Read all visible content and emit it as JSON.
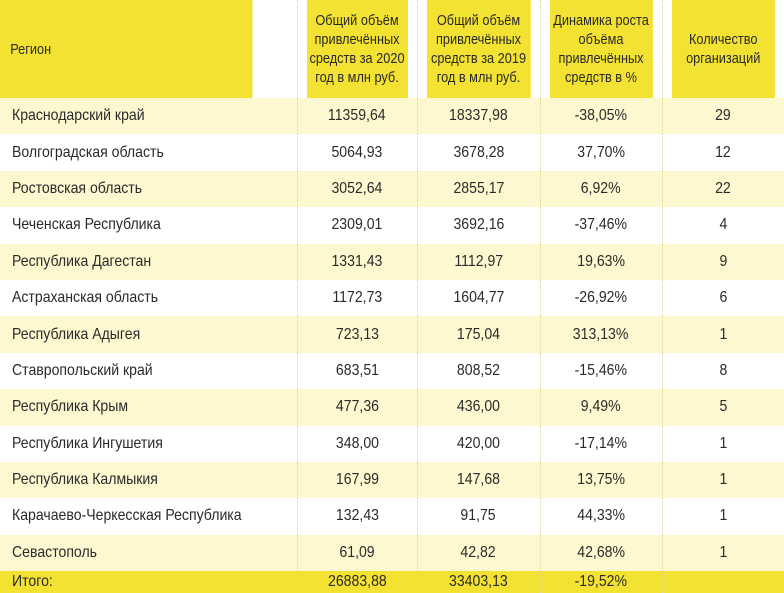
{
  "colors": {
    "header": "#f3e232",
    "row_alt": "#fdf8cf",
    "row": "#ffffff"
  },
  "headers": [
    "Регион",
    "Общий объём привлечённых средств за 2020 год в млн руб.",
    "Общий объём привлечённых средств за 2019 год в млн руб.",
    "Динамика роста объёма привлечённых средств в %",
    "Количество организаций"
  ],
  "rows": [
    [
      "Краснодарский край",
      "11359,64",
      "18337,98",
      "-38,05%",
      "29"
    ],
    [
      "Волгоградская область",
      "5064,93",
      "3678,28",
      "37,70%",
      "12"
    ],
    [
      "Ростовская область",
      "3052,64",
      "2855,17",
      "6,92%",
      "22"
    ],
    [
      "Чеченская Республика",
      "2309,01",
      "3692,16",
      "-37,46%",
      "4"
    ],
    [
      "Республика Дагестан",
      "1331,43",
      "1112,97",
      "19,63%",
      "9"
    ],
    [
      "Астраханская область",
      "1172,73",
      "1604,77",
      "-26,92%",
      "6"
    ],
    [
      "Республика Адыгея",
      "723,13",
      "175,04",
      "313,13%",
      "1"
    ],
    [
      "Ставропольский край",
      "683,51",
      "808,52",
      "-15,46%",
      "8"
    ],
    [
      "Республика Крым",
      "477,36",
      "436,00",
      "9,49%",
      "5"
    ],
    [
      "Республика Ингушетия",
      "348,00",
      "420,00",
      "-17,14%",
      "1"
    ],
    [
      "Республика Калмыкия",
      "167,99",
      "147,68",
      "13,75%",
      "1"
    ],
    [
      "Карачаево-Черкесская Республика",
      "132,43",
      "91,75",
      "44,33%",
      "1"
    ],
    [
      "Севастополь",
      "61,09",
      "42,82",
      "42,68%",
      "1"
    ]
  ],
  "total": [
    "Итого:",
    "26883,88",
    "33403,13",
    "-19,52%",
    ""
  ]
}
